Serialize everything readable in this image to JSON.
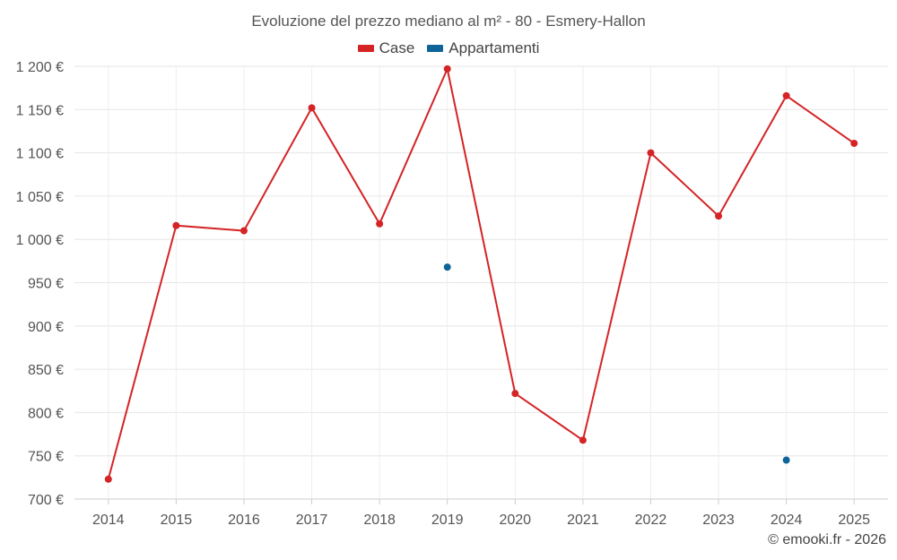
{
  "chart_data": {
    "type": "line",
    "title": "Evoluzione del prezzo mediano al m² - 80 - Esmery-Hallon",
    "categories": [
      "2014",
      "2015",
      "2016",
      "2017",
      "2018",
      "2019",
      "2020",
      "2021",
      "2022",
      "2023",
      "2024",
      "2025"
    ],
    "series": [
      {
        "name": "Case",
        "color": "#d42426",
        "values": [
          723,
          1016,
          1010,
          1152,
          1018,
          1197,
          822,
          768,
          1100,
          1027,
          1166,
          1111
        ]
      },
      {
        "name": "Appartamenti",
        "color": "#0e6397",
        "values": [
          null,
          null,
          null,
          null,
          null,
          968,
          null,
          null,
          null,
          null,
          745,
          null
        ]
      }
    ],
    "ylim": [
      700,
      1200
    ],
    "yticks": [
      700,
      750,
      800,
      850,
      900,
      950,
      1000,
      1050,
      1100,
      1150,
      1200
    ],
    "ytick_labels": [
      "700 €",
      "750 €",
      "800 €",
      "850 €",
      "900 €",
      "950 €",
      "1 000 €",
      "1 050 €",
      "1 100 €",
      "1 150 €",
      "1 200 €"
    ],
    "xlabel": "",
    "ylabel": "",
    "grid": true,
    "legend_position": "top-center"
  },
  "credit": "© emooki.fr - 2026"
}
